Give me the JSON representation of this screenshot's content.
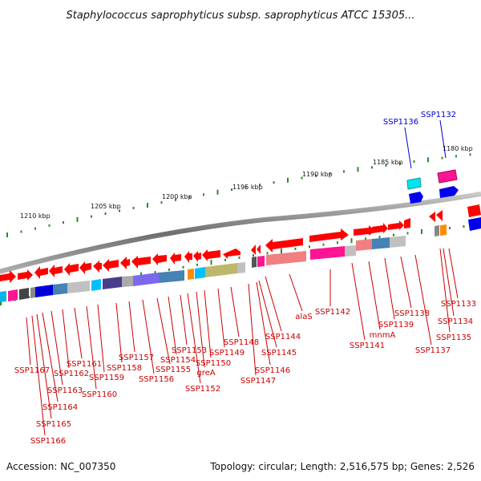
{
  "title": "Staphylococcus saprophyticus subsp. saprophyticus ATCC 15305...",
  "footer": {
    "accession": "Accession: NC_007350",
    "stats": "Topology: circular; Length: 2,516,575 bp; Genes: 2,526"
  },
  "colors": {
    "forward_gene": "#ff0000",
    "label_red": "#cc0000",
    "label_blue": "#0000cc",
    "ruler_tick": "#2a8a2a",
    "backbone": "#7a7a7a"
  },
  "kbp_labels": [
    "1180 kbp",
    "1185 kbp",
    "1190 kbp",
    "1195 kbp",
    "1200 kbp",
    "1205 kbp",
    "1210 kbp"
  ],
  "gene_labels": [
    {
      "text": "SSP1132",
      "color": "blue"
    },
    {
      "text": "SSP1136",
      "color": "blue"
    },
    {
      "text": "SSP1133",
      "color": "red"
    },
    {
      "text": "SSP1134",
      "color": "red"
    },
    {
      "text": "SSP1135",
      "color": "red"
    },
    {
      "text": "SSP1137",
      "color": "red"
    },
    {
      "text": "SSP1138",
      "color": "red"
    },
    {
      "text": "SSP1139",
      "color": "red"
    },
    {
      "text": "mnmA",
      "color": "red"
    },
    {
      "text": "SSP1141",
      "color": "red"
    },
    {
      "text": "SSP1142",
      "color": "red"
    },
    {
      "text": "alaS",
      "color": "red"
    },
    {
      "text": "SSP1144",
      "color": "red"
    },
    {
      "text": "SSP1145",
      "color": "red"
    },
    {
      "text": "SSP1146",
      "color": "red"
    },
    {
      "text": "SSP1147",
      "color": "red"
    },
    {
      "text": "SSP1148",
      "color": "red"
    },
    {
      "text": "SSP1149",
      "color": "red"
    },
    {
      "text": "SSP1150",
      "color": "red"
    },
    {
      "text": "greA",
      "color": "red"
    },
    {
      "text": "SSP1152",
      "color": "red"
    },
    {
      "text": "SSP1153",
      "color": "red"
    },
    {
      "text": "SSP1154",
      "color": "red"
    },
    {
      "text": "SSP1155",
      "color": "red"
    },
    {
      "text": "SSP1156",
      "color": "red"
    },
    {
      "text": "SSP1157",
      "color": "red"
    },
    {
      "text": "SSP1158",
      "color": "red"
    },
    {
      "text": "SSP1159",
      "color": "red"
    },
    {
      "text": "SSP1160",
      "color": "red"
    },
    {
      "text": "SSP1161",
      "color": "red"
    },
    {
      "text": "SSP1162",
      "color": "red"
    },
    {
      "text": "SSP1163",
      "color": "red"
    },
    {
      "text": "SSP1164",
      "color": "red"
    },
    {
      "text": "SSP1165",
      "color": "red"
    },
    {
      "text": "SSP1166",
      "color": "red"
    },
    {
      "text": "SSP1167",
      "color": "red"
    }
  ]
}
